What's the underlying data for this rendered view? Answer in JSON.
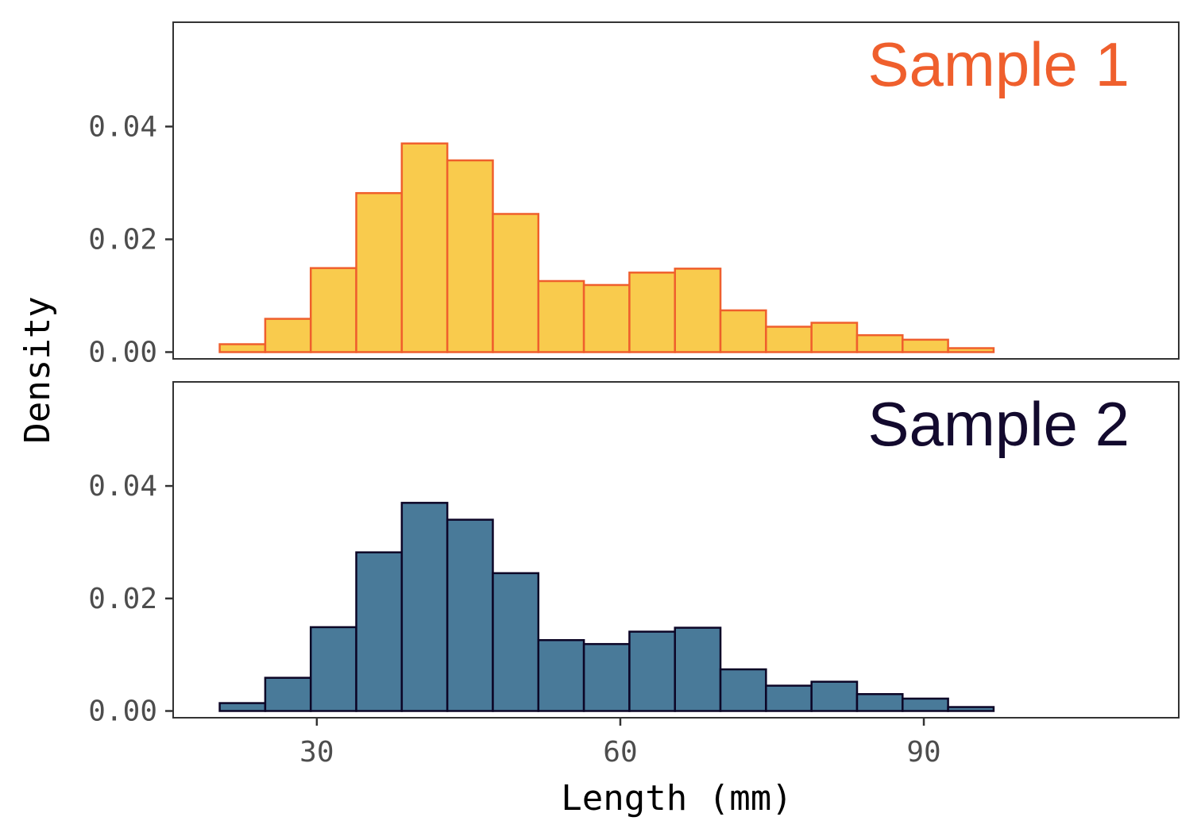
{
  "chart_data": {
    "type": "bar",
    "subtype": "histogram",
    "xlabel": "Length (mm)",
    "ylabel": "Density",
    "x_ticks": [
      30,
      60,
      90
    ],
    "y_ticks": [
      "0.00",
      "0.02",
      "0.04"
    ],
    "xlim": [
      15.8,
      115.2
    ],
    "ylim": [
      -0.0012,
      0.0585
    ],
    "grid": false,
    "bin_edges": [
      20.4,
      24.9,
      29.4,
      33.9,
      38.4,
      42.9,
      47.4,
      51.9,
      56.4,
      60.9,
      65.4,
      69.9,
      74.4,
      78.9,
      83.4,
      87.9,
      92.4,
      96.9,
      101.4,
      105.9,
      110.4
    ],
    "series": [
      {
        "name": "Sample 1",
        "fill": "#f9cb4d",
        "stroke": "#ef5f2d",
        "title_color": "#ef5f2d",
        "values": [
          0.0014,
          0.0059,
          0.0149,
          0.0282,
          0.037,
          0.034,
          0.0245,
          0.0126,
          0.0119,
          0.0141,
          0.0148,
          0.0074,
          0.0045,
          0.0052,
          0.003,
          0.0022,
          0.0007,
          0.0,
          0.0,
          0.0
        ]
      },
      {
        "name": "Sample 2",
        "fill": "#497a99",
        "stroke": "#0c0526",
        "title_color": "#130a2e",
        "values": [
          0.0014,
          0.0059,
          0.0149,
          0.0282,
          0.037,
          0.034,
          0.0245,
          0.0126,
          0.0119,
          0.0141,
          0.0148,
          0.0074,
          0.0045,
          0.0052,
          0.003,
          0.0022,
          0.0007,
          0.0,
          0.0,
          0.0
        ]
      }
    ]
  }
}
